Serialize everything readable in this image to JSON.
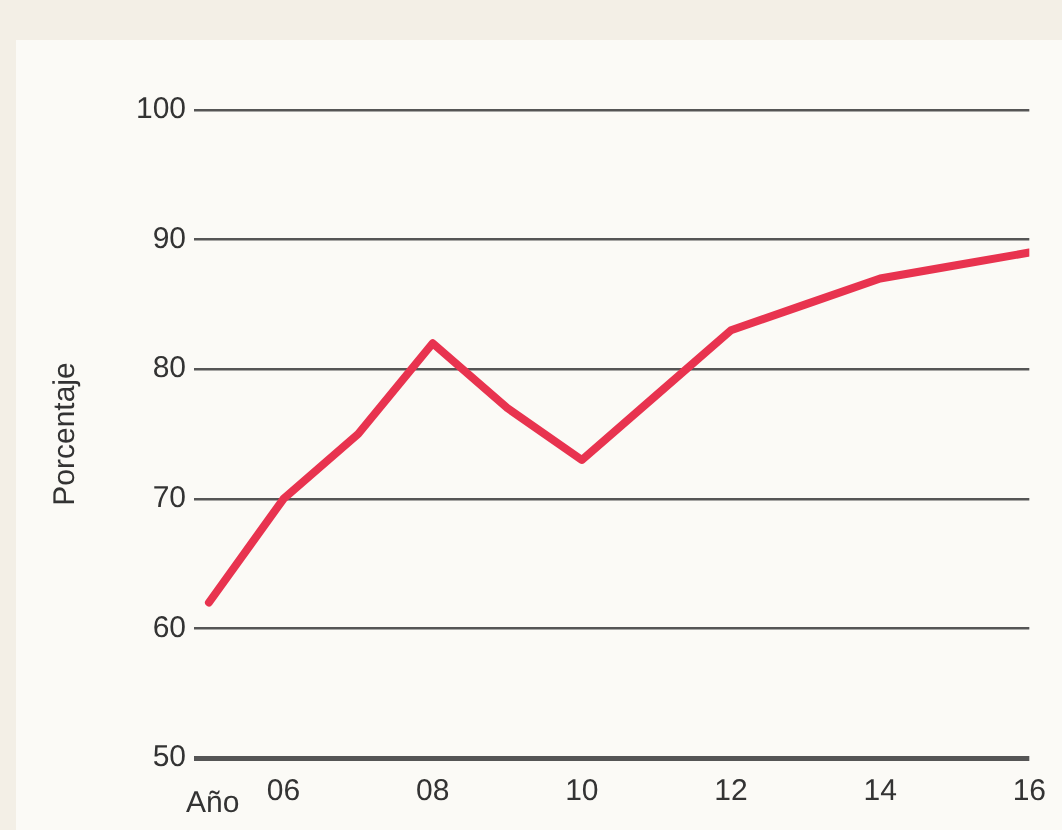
{
  "chart_data": {
    "type": "line",
    "xlabel": "Año",
    "ylabel": "Porcentaje",
    "x": [
      2005,
      2006,
      2007,
      2008,
      2009,
      2010,
      2011,
      2012,
      2013,
      2014,
      2015,
      2016
    ],
    "series": [
      {
        "color": "#e8334f",
        "values": [
          62,
          70,
          75,
          82,
          77,
          73,
          78,
          83,
          85,
          87,
          88,
          89
        ]
      }
    ],
    "xlim": [
      2004.8,
      2016
    ],
    "xticks": [
      {
        "value": 2006,
        "label": "06"
      },
      {
        "value": 2008,
        "label": "08"
      },
      {
        "value": 2010,
        "label": "10"
      },
      {
        "value": 2012,
        "label": "12"
      },
      {
        "value": 2014,
        "label": "14"
      },
      {
        "value": 2016,
        "label": "16"
      }
    ],
    "ylim": [
      50,
      100
    ],
    "yticks": [
      50,
      60,
      70,
      80,
      90,
      100
    ],
    "grid": "y",
    "legend": false,
    "marker": "none",
    "line_style": "solid"
  }
}
